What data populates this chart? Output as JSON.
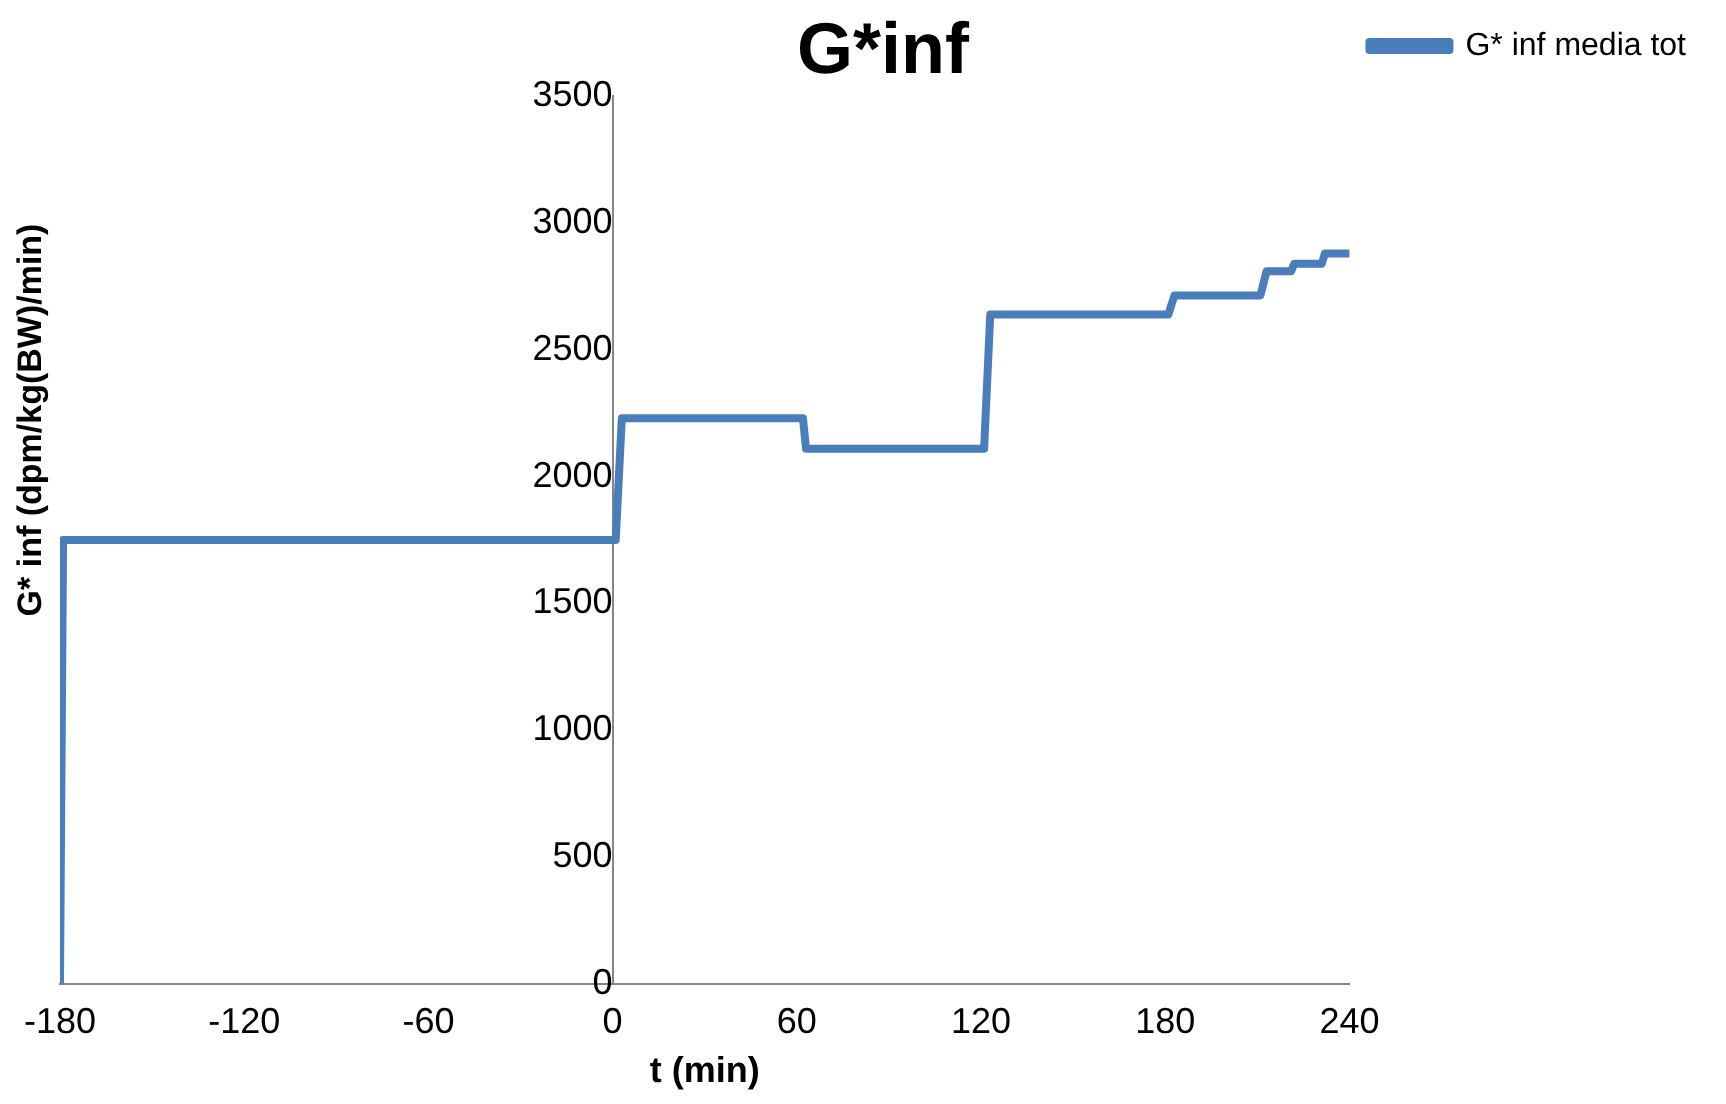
{
  "chart_data": {
    "type": "line",
    "title": "G*inf",
    "xlabel": "t (min)",
    "ylabel": "G* inf (dpm/kg(BW)/min)",
    "series": [
      {
        "name": "G* inf media tot",
        "color": "#4a7ebb",
        "x": [
          -180,
          -179,
          1,
          3,
          62,
          63,
          121,
          123,
          181,
          183,
          211,
          213,
          221,
          222,
          231,
          232,
          240
        ],
        "values": [
          0,
          1750,
          1750,
          2230,
          2230,
          2110,
          2110,
          2640,
          2640,
          2715,
          2715,
          2810,
          2810,
          2840,
          2840,
          2880,
          2880
        ]
      }
    ],
    "xlim": [
      -180,
      240
    ],
    "xticks": [
      -180,
      -120,
      -60,
      0,
      60,
      120,
      180,
      240
    ],
    "ylim": [
      0,
      3500
    ],
    "yticks": [
      0,
      500,
      1000,
      1500,
      2000,
      2500,
      3000,
      3500
    ],
    "grid": false,
    "legend": "top right",
    "marker": "none",
    "line_style": "solid"
  }
}
